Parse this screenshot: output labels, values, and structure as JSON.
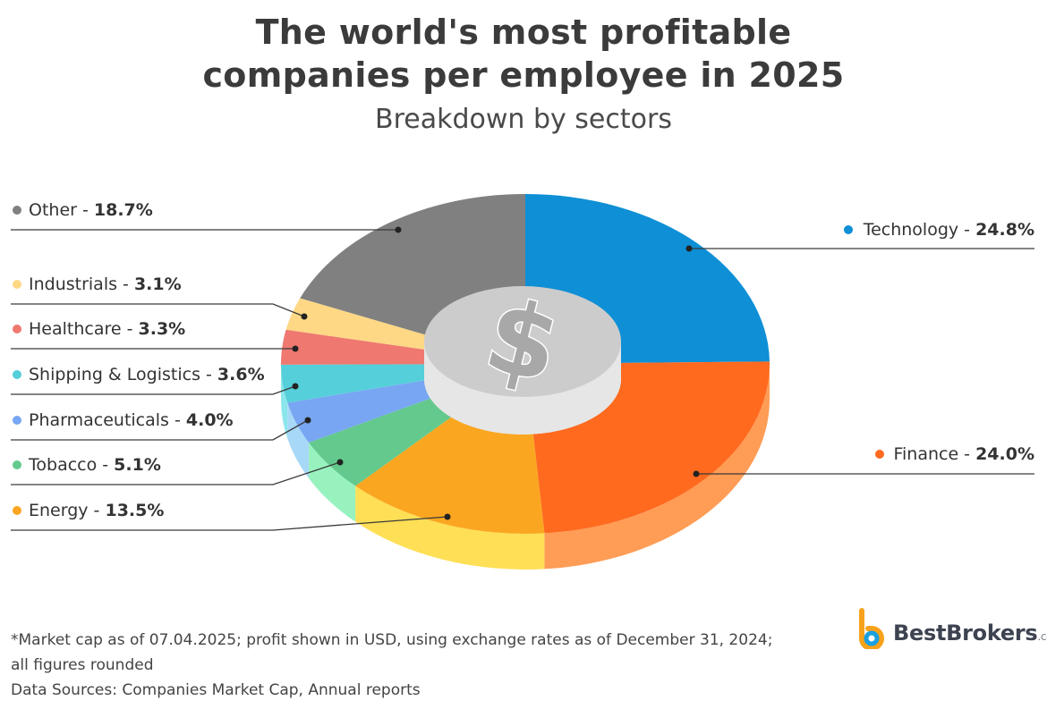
{
  "header": {
    "title_line1": "The world's most profitable",
    "title_line2": "companies per employee in 2025",
    "subtitle": "Breakdown by sectors"
  },
  "chart_data": {
    "type": "pie",
    "title": "The world's most profitable companies per employee in 2025",
    "subtitle": "Breakdown by sectors",
    "unit": "%",
    "slices": [
      {
        "label": "Technology",
        "value": 24.8,
        "display": "24.8%",
        "color": "#0e8fd6",
        "side_color": "#2c9fdc"
      },
      {
        "label": "Finance",
        "value": 24.0,
        "display": "24.0%",
        "color": "#ff6a1f",
        "side_color": "#ff9c55"
      },
      {
        "label": "Energy",
        "value": 13.5,
        "display": "13.5%",
        "color": "#fba620",
        "side_color": "#ffdf55"
      },
      {
        "label": "Tobacco",
        "value": 5.1,
        "display": "5.1%",
        "color": "#63c98d",
        "side_color": "#97f2be"
      },
      {
        "label": "Pharmaceuticals",
        "value": 4.0,
        "display": "4.0%",
        "color": "#78a6f2",
        "side_color": "#a8d8f8"
      },
      {
        "label": "Shipping & Logistics",
        "value": 3.6,
        "display": "3.6%",
        "color": "#55cfd9",
        "side_color": "#8be6ec"
      },
      {
        "label": "Healthcare",
        "value": 3.3,
        "display": "3.3%",
        "color": "#ef7870",
        "side_color": "#f6a39d"
      },
      {
        "label": "Industrials",
        "value": 3.1,
        "display": "3.1%",
        "color": "#fed885",
        "side_color": "#ffe7ab"
      },
      {
        "label": "Other",
        "value": 18.7,
        "display": "18.7%",
        "color": "#808080",
        "side_color": "#9a9a9a"
      }
    ],
    "center_icon": "dollar-coin-icon",
    "center_colors": {
      "face": "#cccccc",
      "side": "#e6e6e6",
      "symbol": "#a8a8a8"
    }
  },
  "footnote": {
    "line1": "*Market cap as of 07.04.2025; profit shown in USD, using exchange rates as of December 31, 2024;",
    "line2": "all figures rounded",
    "line3": "Data Sources: Companies Market Cap, Annual reports"
  },
  "brand": {
    "name": "BestBrokers",
    "suffix": ".com",
    "logo_icon": "bestbrokers-logo-icon",
    "colors": {
      "orange": "#f7a21b",
      "blue": "#1aa0e0",
      "text": "#3d4350"
    }
  }
}
